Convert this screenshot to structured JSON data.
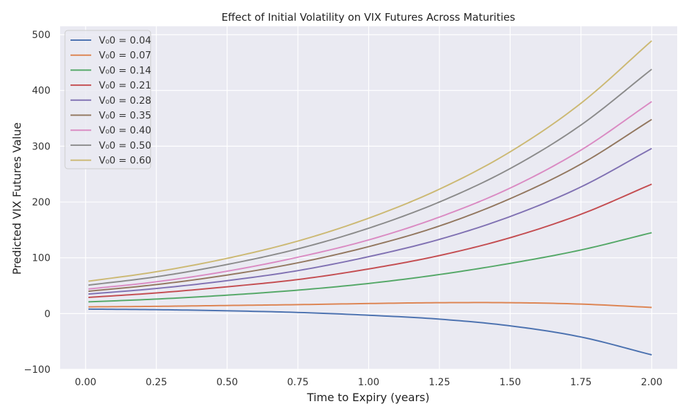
{
  "chart_data": {
    "type": "line",
    "title": "Effect of Initial Volatility on VIX Futures Across Maturities",
    "xlabel": "Time to Expiry (years)",
    "ylabel": "Predicted VIX Futures Value",
    "xlim": [
      -0.09,
      2.09
    ],
    "ylim": [
      -100,
      515
    ],
    "xticks": [
      0.0,
      0.25,
      0.5,
      0.75,
      1.0,
      1.25,
      1.5,
      1.75,
      2.0
    ],
    "xtick_labels": [
      "0.00",
      "0.25",
      "0.50",
      "0.75",
      "1.00",
      "1.25",
      "1.50",
      "1.75",
      "2.00"
    ],
    "yticks": [
      -100,
      0,
      100,
      200,
      300,
      400,
      500
    ],
    "ytick_labels": [
      "−100",
      "0",
      "100",
      "200",
      "300",
      "400",
      "500"
    ],
    "grid": true,
    "legend_position": "top-left",
    "x": [
      0.01,
      0.25,
      0.5,
      0.75,
      1.0,
      1.25,
      1.5,
      1.75,
      2.0
    ],
    "series": [
      {
        "name": "V₀0 = 0.04",
        "color": "#4c72b0",
        "values": [
          8,
          7,
          5,
          2,
          -3,
          -10,
          -22,
          -42,
          -74
        ]
      },
      {
        "name": "V₀0 = 0.07",
        "color": "#dd8452",
        "values": [
          12,
          13,
          14.5,
          16,
          18,
          19.5,
          19.5,
          17,
          11
        ]
      },
      {
        "name": "V₀0 = 0.14",
        "color": "#55a868",
        "values": [
          21,
          26,
          33,
          42,
          54,
          70,
          90,
          114,
          145
        ]
      },
      {
        "name": "V₀0 = 0.21",
        "color": "#c44e52",
        "values": [
          29,
          37,
          48,
          61,
          80,
          104,
          136,
          178,
          232
        ]
      },
      {
        "name": "V₀0 = 0.28",
        "color": "#8172b3",
        "values": [
          35,
          45,
          59,
          77,
          102,
          133,
          174,
          227,
          296
        ]
      },
      {
        "name": "V₀0 = 0.35",
        "color": "#937860",
        "values": [
          40,
          52,
          69,
          91,
          120,
          157,
          206,
          268,
          348
        ]
      },
      {
        "name": "V₀0 = 0.40",
        "color": "#da8bc3",
        "values": [
          44,
          57,
          76,
          101,
          132,
          173,
          225,
          293,
          380
        ]
      },
      {
        "name": "V₀0 = 0.50",
        "color": "#8c8c8c",
        "values": [
          51,
          66,
          88,
          116,
          153,
          200,
          260,
          338,
          438
        ]
      },
      {
        "name": "V₀0 = 0.60",
        "color": "#ccb974",
        "values": [
          58,
          75,
          99,
          130,
          171,
          223,
          290,
          377,
          489
        ]
      }
    ]
  }
}
